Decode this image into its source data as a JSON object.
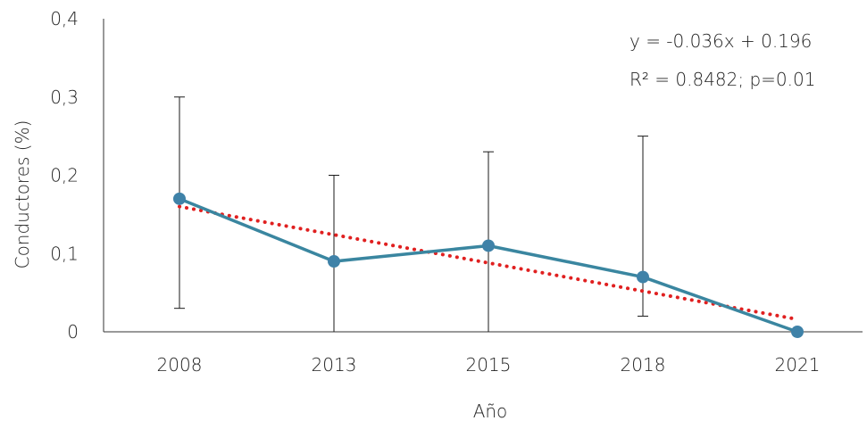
{
  "chart_data": {
    "type": "line",
    "categories": [
      "2008",
      "2013",
      "2015",
      "2018",
      "2021"
    ],
    "series": [
      {
        "values": [
          0.17,
          0.09,
          0.11,
          0.07,
          0.0
        ],
        "error_low": [
          0.03,
          0.0,
          0.0,
          0.02,
          0.0
        ],
        "error_high": [
          0.3,
          0.2,
          0.23,
          0.25,
          0.0
        ],
        "color": "#3a86a0",
        "marker_color": "#3f82a8"
      }
    ],
    "trendline": {
      "type": "linear",
      "slope": -0.036,
      "intercept": 0.196,
      "color": "#e02020",
      "style": "dotted"
    },
    "annotations": [
      "y = -0.036x + 0.196",
      "R² = 0.8482; p=0.01"
    ],
    "xlabel": "Año",
    "ylabel": "Conductores (%)",
    "ylim": [
      0,
      0.4
    ],
    "yticks": [
      "0",
      "0,1",
      "0,2",
      "0,3",
      "0,4"
    ],
    "ytick_values": [
      0,
      0.1,
      0.2,
      0.3,
      0.4
    ],
    "grid": false,
    "legend": "none"
  }
}
